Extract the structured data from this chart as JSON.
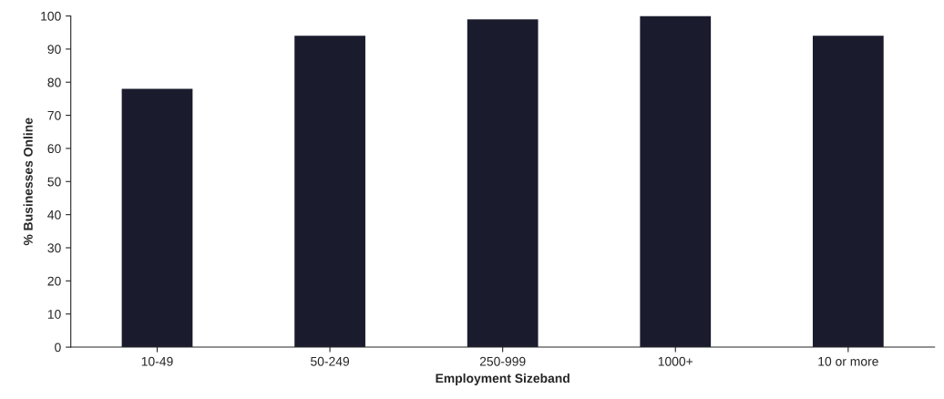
{
  "chart_data": {
    "type": "bar",
    "xlabel": "Employment Sizeband",
    "ylabel": "% Businesses Online",
    "categories": [
      "10-49",
      "50-249",
      "250-999",
      "1000+",
      "10 or more"
    ],
    "values": [
      78,
      94,
      99,
      100,
      94
    ],
    "color": "#1a1c2e",
    "ylim": [
      0,
      100
    ],
    "yticks": [
      0,
      10,
      20,
      30,
      40,
      50,
      60,
      70,
      80,
      90,
      100
    ],
    "grid": false,
    "legend": false
  }
}
